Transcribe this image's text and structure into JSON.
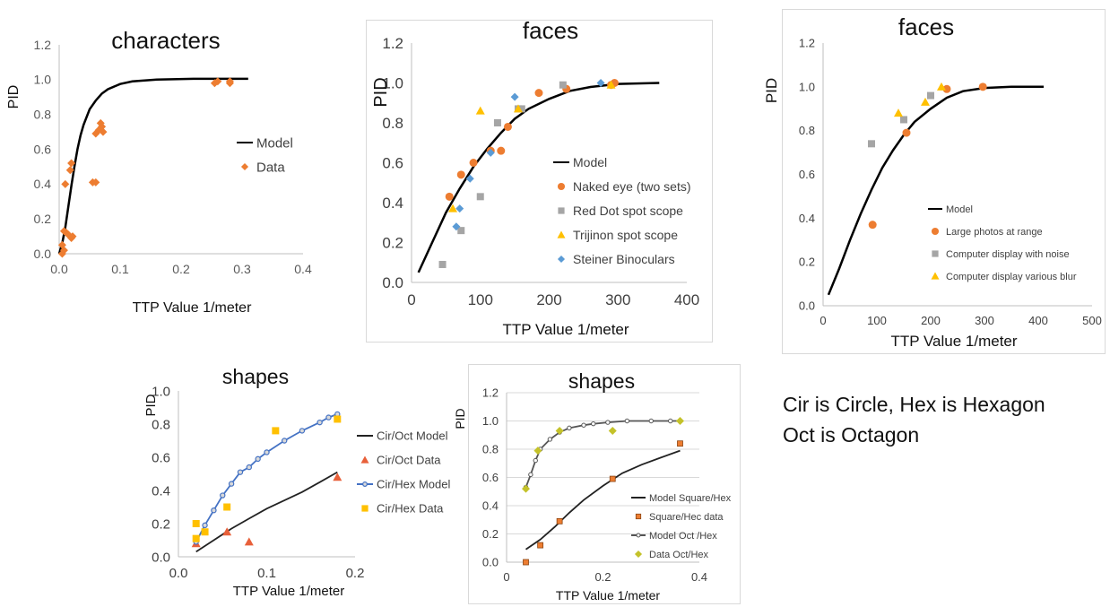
{
  "note": {
    "line1": "Cir is Circle, Hex is Hexagon",
    "line2": "Oct is Octagon"
  },
  "charts": [
    {
      "id": "characters",
      "chart_data": {
        "type": "scatter",
        "title": "characters",
        "xlabel": "TTP Value 1/meter",
        "ylabel": "PID",
        "xlim": [
          0,
          0.4
        ],
        "ylim": [
          0,
          1.2
        ],
        "xticks": [
          "0.0",
          "0.1",
          "0.2",
          "0.3",
          "0.4"
        ],
        "yticks": [
          "0.0",
          "0.2",
          "0.4",
          "0.6",
          "0.8",
          "1.0",
          "1.2"
        ],
        "legend_position": "right",
        "series": [
          {
            "name": "Model",
            "kind": "line",
            "color": "#000000",
            "points": [
              [
                0.0,
                0.0
              ],
              [
                0.005,
                0.06
              ],
              [
                0.01,
                0.15
              ],
              [
                0.015,
                0.27
              ],
              [
                0.02,
                0.39
              ],
              [
                0.025,
                0.5
              ],
              [
                0.03,
                0.6
              ],
              [
                0.035,
                0.68
              ],
              [
                0.04,
                0.74
              ],
              [
                0.05,
                0.83
              ],
              [
                0.06,
                0.88
              ],
              [
                0.07,
                0.92
              ],
              [
                0.08,
                0.945
              ],
              [
                0.1,
                0.975
              ],
              [
                0.12,
                0.99
              ],
              [
                0.16,
                1.0
              ],
              [
                0.22,
                1.005
              ],
              [
                0.31,
                1.005
              ]
            ]
          },
          {
            "name": "Data",
            "kind": "marker",
            "marker": "diamond",
            "color": "#ED7D31",
            "points": [
              [
                0.005,
                0.0
              ],
              [
                0.005,
                0.05
              ],
              [
                0.008,
                0.02
              ],
              [
                0.008,
                0.13
              ],
              [
                0.01,
                0.4
              ],
              [
                0.012,
                0.12
              ],
              [
                0.015,
                0.11
              ],
              [
                0.018,
                0.48
              ],
              [
                0.02,
                0.52
              ],
              [
                0.02,
                0.09
              ],
              [
                0.022,
                0.1
              ],
              [
                0.055,
                0.41
              ],
              [
                0.06,
                0.41
              ],
              [
                0.06,
                0.69
              ],
              [
                0.065,
                0.71
              ],
              [
                0.068,
                0.75
              ],
              [
                0.07,
                0.73
              ],
              [
                0.072,
                0.7
              ],
              [
                0.255,
                0.98
              ],
              [
                0.26,
                0.99
              ],
              [
                0.28,
                0.98
              ],
              [
                0.28,
                0.99
              ]
            ]
          }
        ]
      }
    },
    {
      "id": "faces-1",
      "chart_data": {
        "type": "scatter",
        "title": "faces",
        "xlabel": "TTP Value 1/meter",
        "ylabel": "PID",
        "xlim": [
          0,
          400
        ],
        "ylim": [
          0,
          1.2
        ],
        "xticks": [
          "0",
          "100",
          "200",
          "300",
          "400"
        ],
        "yticks": [
          "0.0",
          "0.2",
          "0.4",
          "0.6",
          "0.8",
          "1.0",
          "1.2"
        ],
        "legend_position": "right",
        "series": [
          {
            "name": "Model",
            "kind": "line",
            "color": "#000000",
            "points": [
              [
                10,
                0.05
              ],
              [
                30,
                0.2
              ],
              [
                50,
                0.35
              ],
              [
                70,
                0.47
              ],
              [
                90,
                0.58
              ],
              [
                110,
                0.67
              ],
              [
                130,
                0.75
              ],
              [
                150,
                0.82
              ],
              [
                170,
                0.87
              ],
              [
                200,
                0.92
              ],
              [
                230,
                0.96
              ],
              [
                260,
                0.98
              ],
              [
                300,
                0.995
              ],
              [
                360,
                1.0
              ]
            ]
          },
          {
            "name": "Naked eye (two sets)",
            "kind": "marker",
            "marker": "circle",
            "color": "#ED7D31",
            "points": [
              [
                55,
                0.43
              ],
              [
                72,
                0.54
              ],
              [
                90,
                0.6
              ],
              [
                115,
                0.66
              ],
              [
                130,
                0.66
              ],
              [
                140,
                0.78
              ],
              [
                185,
                0.95
              ],
              [
                225,
                0.97
              ],
              [
                290,
                0.99
              ],
              [
                295,
                1.0
              ]
            ]
          },
          {
            "name": "Red Dot spot scope",
            "kind": "marker",
            "marker": "square",
            "color": "#A5A5A5",
            "points": [
              [
                45,
                0.09
              ],
              [
                72,
                0.26
              ],
              [
                100,
                0.43
              ],
              [
                125,
                0.8
              ],
              [
                155,
                0.87
              ],
              [
                160,
                0.87
              ],
              [
                220,
                0.99
              ]
            ]
          },
          {
            "name": "Trijinon spot scope",
            "kind": "marker",
            "marker": "triangle",
            "color": "#FFC000",
            "points": [
              [
                60,
                0.37
              ],
              [
                100,
                0.86
              ],
              [
                155,
                0.87
              ],
              [
                290,
                0.99
              ]
            ]
          },
          {
            "name": "Steiner Binoculars",
            "kind": "marker",
            "marker": "diamond",
            "color": "#5B9BD5",
            "points": [
              [
                65,
                0.28
              ],
              [
                70,
                0.37
              ],
              [
                85,
                0.52
              ],
              [
                115,
                0.65
              ],
              [
                150,
                0.93
              ],
              [
                275,
                1.0
              ]
            ]
          }
        ]
      }
    },
    {
      "id": "faces-2",
      "chart_data": {
        "type": "scatter",
        "title": "faces",
        "xlabel": "TTP Value 1/meter",
        "ylabel": "PID",
        "xlim": [
          0,
          500
        ],
        "ylim": [
          0,
          1.2
        ],
        "xticks": [
          "0",
          "100",
          "200",
          "300",
          "400",
          "500"
        ],
        "yticks": [
          "0.0",
          "0.2",
          "0.4",
          "0.6",
          "0.8",
          "1.0",
          "1.2"
        ],
        "legend_position": "bottom-right",
        "series": [
          {
            "name": "Model",
            "kind": "line",
            "color": "#000000",
            "points": [
              [
                10,
                0.05
              ],
              [
                30,
                0.17
              ],
              [
                50,
                0.3
              ],
              [
                70,
                0.42
              ],
              [
                90,
                0.53
              ],
              [
                110,
                0.63
              ],
              [
                130,
                0.71
              ],
              [
                150,
                0.78
              ],
              [
                170,
                0.84
              ],
              [
                200,
                0.9
              ],
              [
                230,
                0.95
              ],
              [
                260,
                0.98
              ],
              [
                300,
                0.995
              ],
              [
                350,
                1.0
              ],
              [
                410,
                1.0
              ]
            ]
          },
          {
            "name": "Large photos at range",
            "kind": "marker",
            "marker": "circle",
            "color": "#ED7D31",
            "points": [
              [
                92,
                0.37
              ],
              [
                155,
                0.79
              ],
              [
                230,
                0.99
              ],
              [
                297,
                1.0
              ]
            ]
          },
          {
            "name": "Computer display with noise",
            "kind": "marker",
            "marker": "square",
            "color": "#A5A5A5",
            "points": [
              [
                90,
                0.74
              ],
              [
                150,
                0.85
              ],
              [
                200,
                0.96
              ]
            ]
          },
          {
            "name": "Computer display various blur",
            "kind": "marker",
            "marker": "triangle",
            "color": "#FFC000",
            "points": [
              [
                140,
                0.88
              ],
              [
                190,
                0.93
              ],
              [
                220,
                1.0
              ]
            ]
          }
        ]
      }
    },
    {
      "id": "shapes-1",
      "chart_data": {
        "type": "scatter",
        "title": "shapes",
        "xlabel": "TTP Value 1/meter",
        "ylabel": "PID",
        "xlim": [
          0,
          0.2
        ],
        "ylim": [
          0,
          1.0
        ],
        "xticks": [
          "0.0",
          "0.1",
          "0.2"
        ],
        "yticks": [
          "0.0",
          "0.2",
          "0.4",
          "0.6",
          "0.8",
          "1.0"
        ],
        "legend_position": "right",
        "series": [
          {
            "name": "Cir/Oct Model",
            "kind": "line",
            "color": "#222222",
            "points": [
              [
                0.02,
                0.03
              ],
              [
                0.04,
                0.1
              ],
              [
                0.06,
                0.17
              ],
              [
                0.08,
                0.23
              ],
              [
                0.1,
                0.29
              ],
              [
                0.12,
                0.34
              ],
              [
                0.14,
                0.39
              ],
              [
                0.16,
                0.45
              ],
              [
                0.18,
                0.51
              ]
            ]
          },
          {
            "name": "Cir/Oct Data",
            "kind": "marker",
            "marker": "triangle",
            "color": "#E8603A",
            "points": [
              [
                0.02,
                0.08
              ],
              [
                0.055,
                0.15
              ],
              [
                0.08,
                0.09
              ],
              [
                0.18,
                0.48
              ]
            ]
          },
          {
            "name": "Cir/Hex Model",
            "kind": "line-marker",
            "marker": "circle-open",
            "color": "#4472C4",
            "points": [
              [
                0.02,
                0.09
              ],
              [
                0.03,
                0.19
              ],
              [
                0.04,
                0.28
              ],
              [
                0.05,
                0.37
              ],
              [
                0.06,
                0.44
              ],
              [
                0.07,
                0.51
              ],
              [
                0.08,
                0.54
              ],
              [
                0.09,
                0.59
              ],
              [
                0.1,
                0.63
              ],
              [
                0.12,
                0.7
              ],
              [
                0.14,
                0.76
              ],
              [
                0.16,
                0.81
              ],
              [
                0.17,
                0.84
              ],
              [
                0.18,
                0.86
              ]
            ]
          },
          {
            "name": "Cir/Hex Data",
            "kind": "marker",
            "marker": "square",
            "color": "#FFC000",
            "points": [
              [
                0.02,
                0.2
              ],
              [
                0.02,
                0.11
              ],
              [
                0.03,
                0.15
              ],
              [
                0.055,
                0.3
              ],
              [
                0.11,
                0.76
              ],
              [
                0.18,
                0.83
              ]
            ]
          }
        ]
      }
    },
    {
      "id": "shapes-2",
      "chart_data": {
        "type": "scatter",
        "title": "shapes",
        "xlabel": "TTP Value 1/meter",
        "ylabel": "PID",
        "xlim": [
          0,
          0.4
        ],
        "ylim": [
          0,
          1.2
        ],
        "xticks": [
          "0",
          "0.2",
          "0.4"
        ],
        "yticks": [
          "0.0",
          "0.2",
          "0.4",
          "0.6",
          "0.8",
          "1.0",
          "1.2"
        ],
        "legend_position": "right",
        "series": [
          {
            "name": "Model Square/Hex",
            "kind": "line",
            "color": "#222222",
            "points": [
              [
                0.04,
                0.09
              ],
              [
                0.07,
                0.16
              ],
              [
                0.1,
                0.25
              ],
              [
                0.13,
                0.35
              ],
              [
                0.16,
                0.44
              ],
              [
                0.2,
                0.54
              ],
              [
                0.24,
                0.63
              ],
              [
                0.28,
                0.69
              ],
              [
                0.32,
                0.74
              ],
              [
                0.36,
                0.79
              ]
            ]
          },
          {
            "name": "Square/Hec data",
            "kind": "marker",
            "marker": "square-outlined",
            "color": "#ED7D31",
            "points": [
              [
                0.04,
                0.0
              ],
              [
                0.07,
                0.12
              ],
              [
                0.11,
                0.29
              ],
              [
                0.22,
                0.59
              ],
              [
                0.36,
                0.84
              ]
            ]
          },
          {
            "name": "Model Oct /Hex",
            "kind": "line-marker",
            "marker": "circle-open-small",
            "color": "#555555",
            "points": [
              [
                0.04,
                0.53
              ],
              [
                0.05,
                0.62
              ],
              [
                0.06,
                0.72
              ],
              [
                0.07,
                0.8
              ],
              [
                0.09,
                0.87
              ],
              [
                0.11,
                0.92
              ],
              [
                0.13,
                0.95
              ],
              [
                0.16,
                0.97
              ],
              [
                0.18,
                0.98
              ],
              [
                0.21,
                0.99
              ],
              [
                0.25,
                1.0
              ],
              [
                0.3,
                1.0
              ],
              [
                0.34,
                1.0
              ],
              [
                0.36,
                1.0
              ]
            ]
          },
          {
            "name": "Data Oct/Hex",
            "kind": "marker",
            "marker": "diamond",
            "color": "#C4C22A",
            "points": [
              [
                0.04,
                0.52
              ],
              [
                0.065,
                0.79
              ],
              [
                0.11,
                0.93
              ],
              [
                0.22,
                0.93
              ],
              [
                0.36,
                1.0
              ]
            ]
          }
        ]
      }
    }
  ]
}
